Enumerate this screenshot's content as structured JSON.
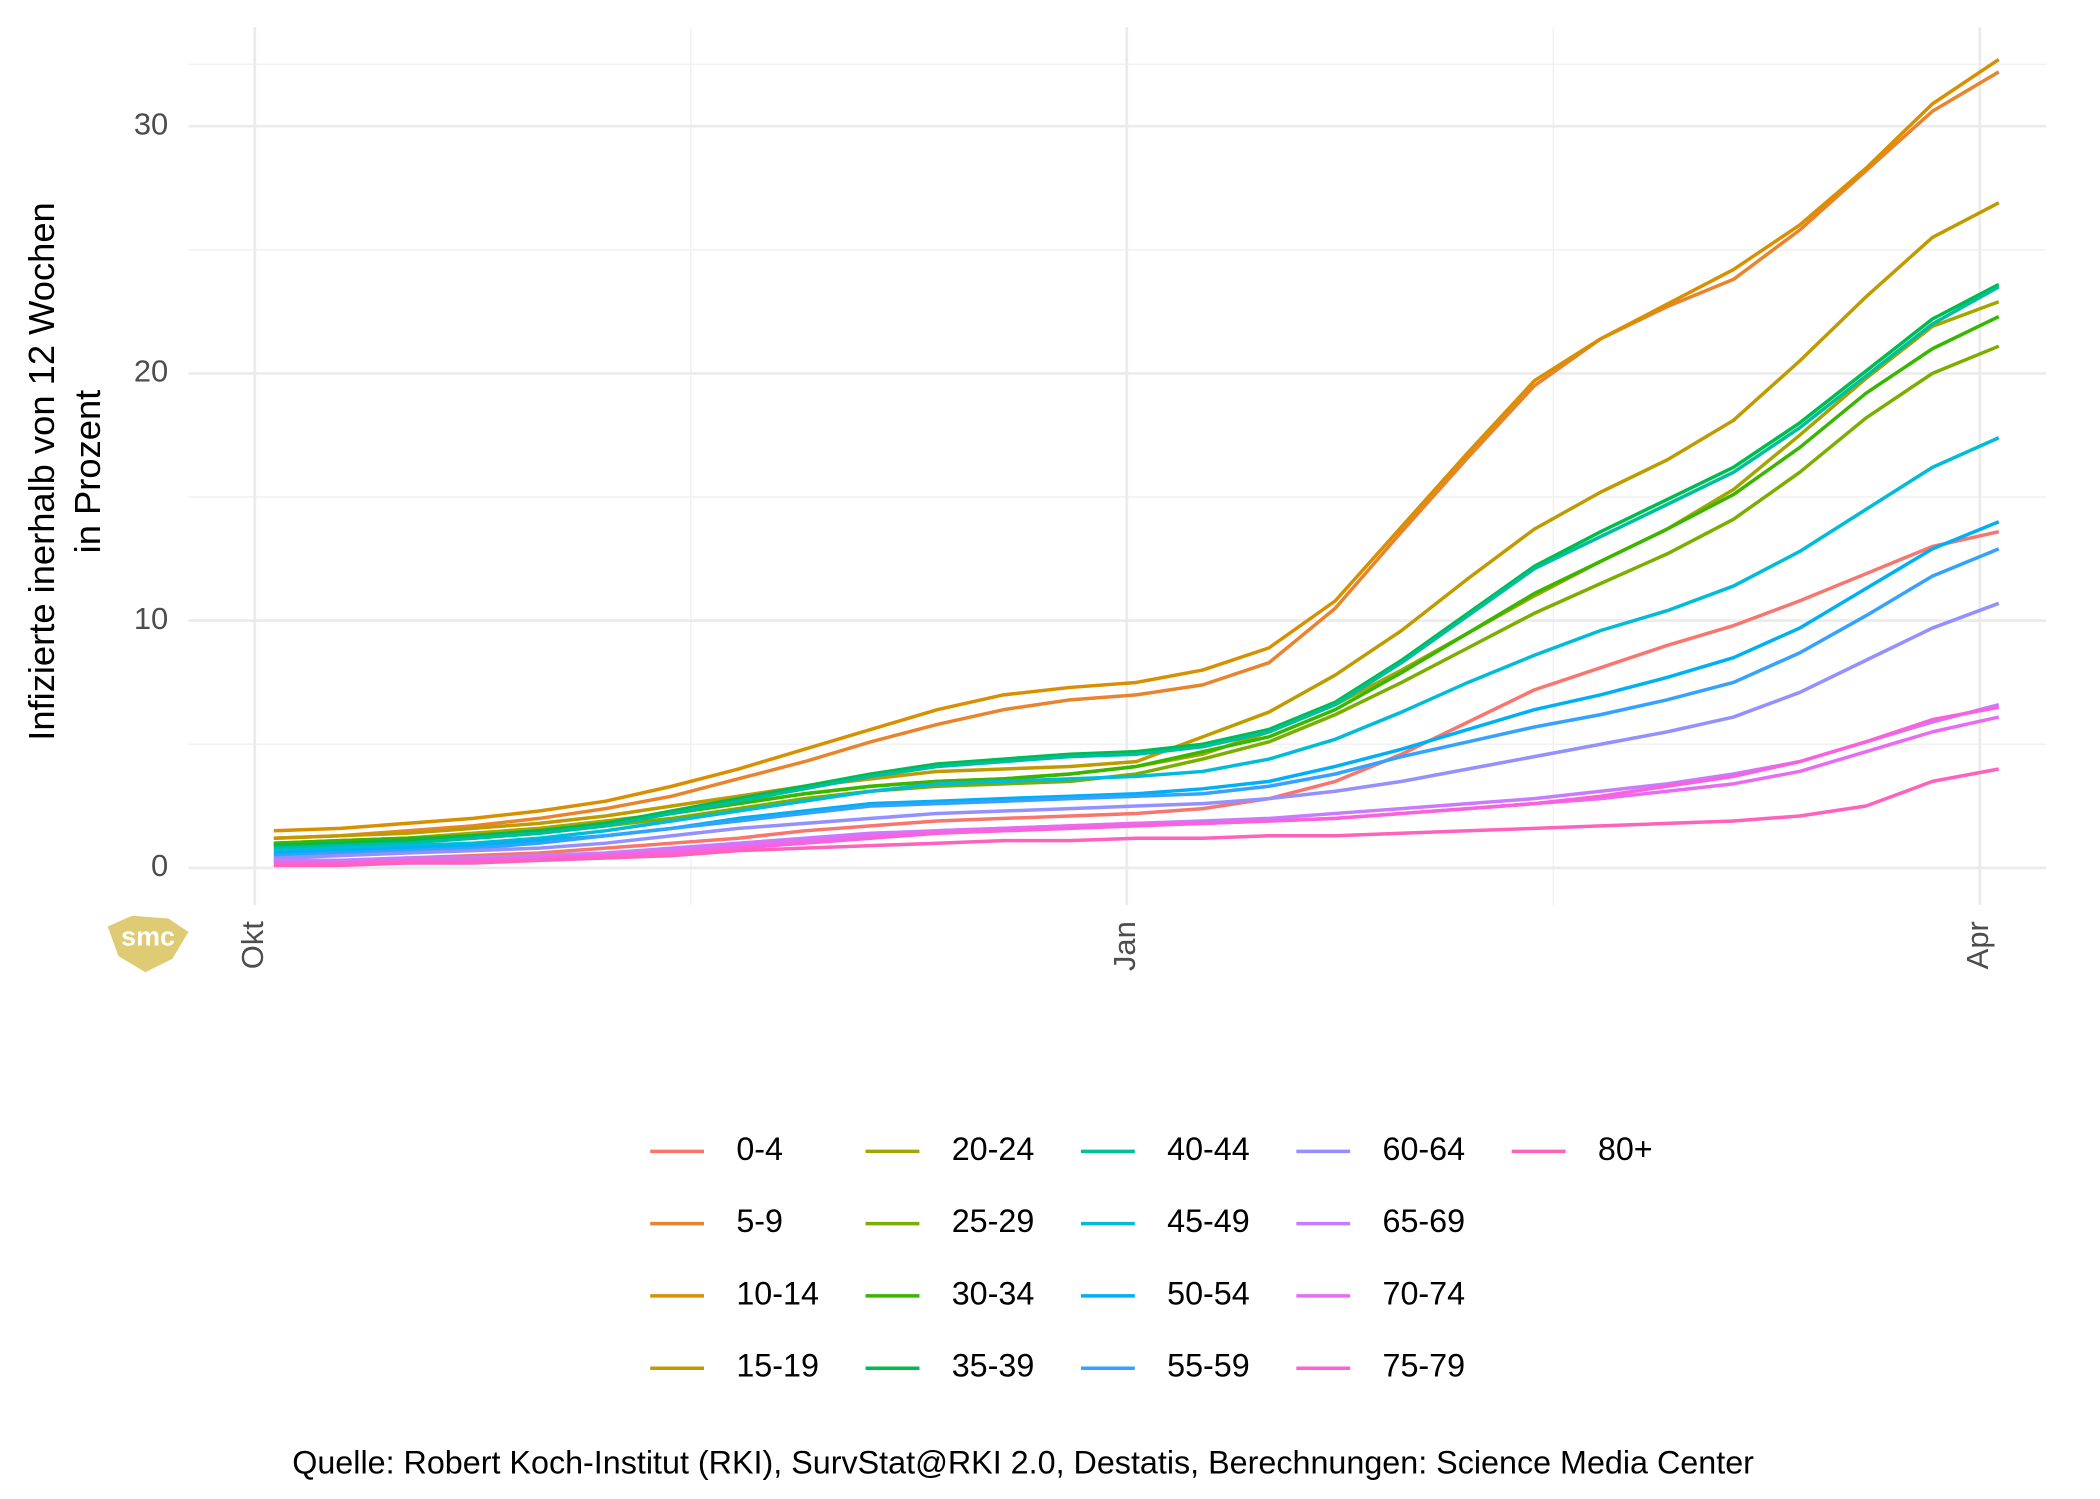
{
  "chart_data": {
    "type": "line",
    "ylabel": [
      "Infizierte inerhalb von 12 Wochen",
      "in Prozent"
    ],
    "caption": "Quelle: Robert Koch-Institut (RKI), SurvStat@RKI 2.0, Destatis, Berechnungen: Science Media Center",
    "logo": "smc",
    "x": [
      2,
      9,
      16,
      23,
      30,
      37,
      44,
      51,
      58,
      65,
      72,
      79,
      86,
      93,
      100,
      107,
      114,
      121,
      128,
      135,
      142,
      149,
      156,
      163,
      170,
      177,
      184
    ],
    "xlim": [
      -7,
      189
    ],
    "xticks": [
      {
        "value": 0,
        "label": "Okt"
      },
      {
        "value": 92,
        "label": "Jan"
      },
      {
        "value": 182,
        "label": "Apr"
      }
    ],
    "ylim": [
      -1.5,
      34
    ],
    "yticks": [
      0,
      10,
      20,
      30
    ],
    "grid": true,
    "series": [
      {
        "name": "0-4",
        "color": "#F8766D",
        "values": [
          0.3,
          0.3,
          0.4,
          0.5,
          0.6,
          0.8,
          1.0,
          1.2,
          1.5,
          1.7,
          1.9,
          2.0,
          2.1,
          2.2,
          2.4,
          2.8,
          3.5,
          4.6,
          5.9,
          7.2,
          8.1,
          9.0,
          9.8,
          10.8,
          11.9,
          13.0,
          13.6
        ]
      },
      {
        "name": "5-9",
        "color": "#E9842C",
        "values": [
          1.2,
          1.3,
          1.5,
          1.7,
          2.0,
          2.4,
          2.9,
          3.6,
          4.3,
          5.1,
          5.8,
          6.4,
          6.8,
          7.0,
          7.4,
          8.3,
          10.5,
          13.6,
          16.6,
          19.5,
          21.4,
          22.7,
          23.8,
          25.8,
          28.2,
          30.6,
          32.2
        ]
      },
      {
        "name": "10-14",
        "color": "#D89000",
        "values": [
          1.5,
          1.6,
          1.8,
          2.0,
          2.3,
          2.7,
          3.3,
          4.0,
          4.8,
          5.6,
          6.4,
          7.0,
          7.3,
          7.5,
          8.0,
          8.9,
          10.8,
          13.8,
          16.8,
          19.7,
          21.4,
          22.8,
          24.2,
          26.0,
          28.3,
          30.9,
          32.7
        ]
      },
      {
        "name": "15-19",
        "color": "#C09B00",
        "values": [
          1.2,
          1.3,
          1.4,
          1.6,
          1.8,
          2.1,
          2.5,
          2.9,
          3.3,
          3.6,
          3.9,
          4.0,
          4.1,
          4.3,
          5.3,
          6.3,
          7.8,
          9.6,
          11.7,
          13.7,
          15.2,
          16.5,
          18.1,
          20.5,
          23.1,
          25.5,
          26.9
        ]
      },
      {
        "name": "20-24",
        "color": "#A3A500",
        "values": [
          1.0,
          1.1,
          1.2,
          1.4,
          1.6,
          1.9,
          2.2,
          2.6,
          3.0,
          3.3,
          3.5,
          3.6,
          3.8,
          4.1,
          4.6,
          5.5,
          6.6,
          8.0,
          9.5,
          11.0,
          12.4,
          13.7,
          15.3,
          17.5,
          19.8,
          21.9,
          22.9
        ]
      },
      {
        "name": "25-29",
        "color": "#7CAE00",
        "values": [
          0.9,
          1.0,
          1.1,
          1.2,
          1.4,
          1.7,
          2.0,
          2.4,
          2.8,
          3.1,
          3.3,
          3.4,
          3.5,
          3.8,
          4.4,
          5.1,
          6.2,
          7.5,
          8.9,
          10.3,
          11.5,
          12.7,
          14.1,
          16.0,
          18.2,
          20.0,
          21.1
        ]
      },
      {
        "name": "30-34",
        "color": "#39B600",
        "values": [
          1.0,
          1.1,
          1.2,
          1.3,
          1.5,
          1.8,
          2.2,
          2.6,
          3.0,
          3.3,
          3.5,
          3.6,
          3.8,
          4.1,
          4.7,
          5.3,
          6.4,
          7.9,
          9.5,
          11.1,
          12.4,
          13.7,
          15.1,
          17.0,
          19.2,
          21.0,
          22.3
        ]
      },
      {
        "name": "35-39",
        "color": "#00BB4E",
        "values": [
          0.9,
          1.0,
          1.1,
          1.3,
          1.5,
          1.8,
          2.3,
          2.8,
          3.3,
          3.8,
          4.2,
          4.4,
          4.6,
          4.7,
          5.0,
          5.6,
          6.7,
          8.4,
          10.3,
          12.2,
          13.6,
          14.9,
          16.2,
          18.0,
          20.1,
          22.2,
          23.6
        ]
      },
      {
        "name": "40-44",
        "color": "#00BFA0",
        "values": [
          0.8,
          0.9,
          1.0,
          1.2,
          1.4,
          1.7,
          2.2,
          2.7,
          3.2,
          3.7,
          4.1,
          4.3,
          4.5,
          4.6,
          4.9,
          5.5,
          6.6,
          8.3,
          10.2,
          12.1,
          13.4,
          14.7,
          16.0,
          17.8,
          19.9,
          22.0,
          23.5
        ]
      },
      {
        "name": "45-49",
        "color": "#00BCD8",
        "values": [
          0.7,
          0.8,
          0.9,
          1.0,
          1.2,
          1.5,
          1.9,
          2.3,
          2.7,
          3.1,
          3.4,
          3.5,
          3.6,
          3.7,
          3.9,
          4.4,
          5.2,
          6.3,
          7.5,
          8.6,
          9.6,
          10.4,
          11.4,
          12.8,
          14.5,
          16.2,
          17.4
        ]
      },
      {
        "name": "50-54",
        "color": "#00B0F6",
        "values": [
          0.6,
          0.7,
          0.8,
          0.9,
          1.1,
          1.3,
          1.6,
          2.0,
          2.3,
          2.6,
          2.7,
          2.8,
          2.9,
          3.0,
          3.2,
          3.5,
          4.1,
          4.8,
          5.6,
          6.4,
          7.0,
          7.7,
          8.5,
          9.7,
          11.3,
          12.9,
          14.0
        ]
      },
      {
        "name": "55-59",
        "color": "#35A2FF",
        "values": [
          0.5,
          0.6,
          0.7,
          0.8,
          1.0,
          1.3,
          1.6,
          1.9,
          2.2,
          2.5,
          2.6,
          2.7,
          2.8,
          2.9,
          3.0,
          3.3,
          3.8,
          4.5,
          5.1,
          5.7,
          6.2,
          6.8,
          7.5,
          8.7,
          10.2,
          11.8,
          12.9
        ]
      },
      {
        "name": "60-64",
        "color": "#9590FF",
        "values": [
          0.4,
          0.5,
          0.6,
          0.7,
          0.8,
          1.0,
          1.3,
          1.6,
          1.8,
          2.0,
          2.2,
          2.3,
          2.4,
          2.5,
          2.6,
          2.8,
          3.1,
          3.5,
          4.0,
          4.5,
          5.0,
          5.5,
          6.1,
          7.1,
          8.4,
          9.7,
          10.7
        ]
      },
      {
        "name": "65-69",
        "color": "#C77CFF",
        "values": [
          0.3,
          0.3,
          0.4,
          0.4,
          0.5,
          0.6,
          0.8,
          1.0,
          1.2,
          1.4,
          1.5,
          1.6,
          1.7,
          1.8,
          1.9,
          2.0,
          2.2,
          2.4,
          2.6,
          2.8,
          3.1,
          3.4,
          3.8,
          4.3,
          5.1,
          5.9,
          6.6
        ]
      },
      {
        "name": "70-74",
        "color": "#E76BF3",
        "values": [
          0.2,
          0.2,
          0.3,
          0.3,
          0.4,
          0.5,
          0.7,
          0.9,
          1.1,
          1.3,
          1.5,
          1.6,
          1.7,
          1.8,
          1.8,
          1.9,
          2.0,
          2.2,
          2.4,
          2.6,
          2.8,
          3.1,
          3.4,
          3.9,
          4.7,
          5.5,
          6.1
        ]
      },
      {
        "name": "75-79",
        "color": "#FA62DB",
        "values": [
          0.2,
          0.2,
          0.3,
          0.3,
          0.4,
          0.5,
          0.6,
          0.8,
          1.0,
          1.2,
          1.4,
          1.5,
          1.6,
          1.7,
          1.8,
          1.9,
          2.0,
          2.2,
          2.4,
          2.6,
          2.9,
          3.3,
          3.7,
          4.3,
          5.1,
          6.0,
          6.5
        ]
      },
      {
        "name": "80+",
        "color": "#FF62BC",
        "values": [
          0.1,
          0.1,
          0.2,
          0.2,
          0.3,
          0.4,
          0.5,
          0.7,
          0.8,
          0.9,
          1.0,
          1.1,
          1.1,
          1.2,
          1.2,
          1.3,
          1.3,
          1.4,
          1.5,
          1.6,
          1.7,
          1.8,
          1.9,
          2.1,
          2.5,
          3.5,
          4.0
        ]
      }
    ]
  }
}
